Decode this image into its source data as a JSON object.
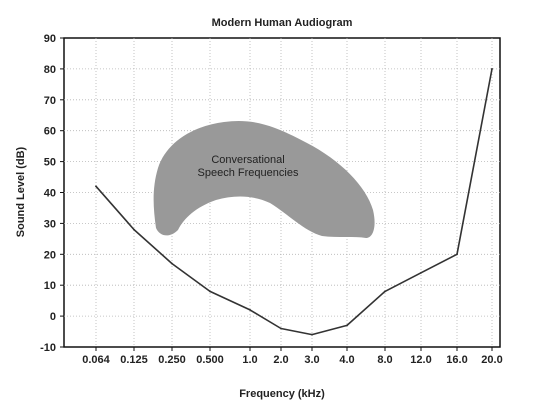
{
  "chart_data": {
    "type": "line",
    "title": "Modern Human Audiogram",
    "xlabel": "Frequency (kHz)",
    "ylabel": "Sound Level (dB)",
    "x_axis_scale": "categorical",
    "categories": [
      "0.064",
      "0.125",
      "0.250",
      "0.500",
      "1.0",
      "2.0",
      "3.0",
      "4.0",
      "8.0",
      "12.0",
      "16.0",
      "20.0"
    ],
    "ylim": [
      -10,
      90
    ],
    "yticks": [
      -10,
      0,
      10,
      20,
      30,
      40,
      50,
      60,
      70,
      80,
      90
    ],
    "grid": true,
    "grid_style": "dotted",
    "series": [
      {
        "values": [
          42,
          28,
          17,
          8,
          2,
          -4,
          -6,
          -3,
          8,
          14,
          20,
          80
        ],
        "color": "#333333"
      }
    ],
    "annotations": [
      {
        "type": "region",
        "label_lines": [
          "Conversational",
          "Speech Frequencies"
        ],
        "color": "#999999"
      }
    ]
  }
}
